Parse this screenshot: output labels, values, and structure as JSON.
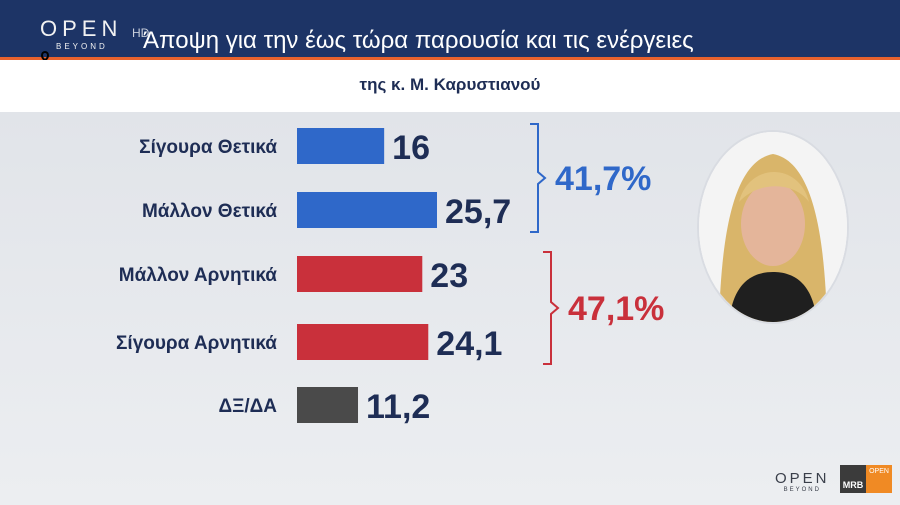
{
  "header": {
    "logo": "OPEN",
    "logo_sub": "BEYOND",
    "logo_hd": "HD",
    "title": "Άποψη για την έως τώρα παρουσία και τις ενέργειες"
  },
  "subtitle": "της κ. Μ. Καρυστιανού",
  "chart_data": {
    "type": "bar",
    "orientation": "horizontal",
    "categories": [
      "Σίγουρα Θετικά",
      "Μάλλον Θετικά",
      "Μάλλον Αρνητικά",
      "Σίγουρα Αρνητικά",
      "ΔΞ/ΔΑ"
    ],
    "values": [
      16,
      25.7,
      23,
      24.1,
      11.2
    ],
    "value_labels": [
      "16",
      "25,7",
      "23",
      "24,1",
      "11,2"
    ],
    "colors": [
      "#2f68c9",
      "#2f68c9",
      "#c9303b",
      "#c9303b",
      "#4a4a4a"
    ],
    "groups": [
      {
        "label": "41,7%",
        "members": [
          0,
          1
        ],
        "color": "#2f68c9"
      },
      {
        "label": "47,1%",
        "members": [
          2,
          3
        ],
        "color": "#c9303b"
      }
    ],
    "xlim": [
      0,
      30
    ]
  },
  "footer": {
    "brand": "OPEN",
    "brand_sub": "BEYOND",
    "mrb": "MRB",
    "mrb_sub": "OPEN"
  }
}
